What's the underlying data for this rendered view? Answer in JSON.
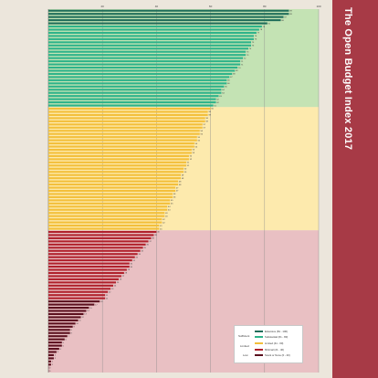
{
  "title": "The Open Budget Index 2017",
  "colors": {
    "background": "#ece6dc",
    "side_panel": "#a73a46",
    "band_sufficient": "#c4e3b4",
    "band_limited": "#fdeaad",
    "band_low": "#e9c0c3",
    "extensive": "#1f6d5a",
    "substantial": "#2db38a",
    "limited": "#f3bf3a",
    "minimal": "#b0202b",
    "scant": "#5a0f1d"
  },
  "legend": {
    "categories": [
      "Sufficient",
      "Limited",
      "Low"
    ],
    "items": [
      {
        "label": "Extensive (81 - 100)",
        "color": "#1f6d5a"
      },
      {
        "label": "Substantial (61 - 80)",
        "color": "#2db38a"
      },
      {
        "label": "Limited (41 - 60)",
        "color": "#f3bf3a"
      },
      {
        "label": "Minimal (21 - 40)",
        "color": "#b0202b"
      },
      {
        "label": "Scant or None (0 - 20)",
        "color": "#5a0f1d"
      }
    ]
  },
  "chart_data": {
    "type": "bar",
    "orientation": "horizontal",
    "title": "The Open Budget Index 2017",
    "xlim": [
      0,
      100
    ],
    "xticks": [
      "20",
      "40",
      "60",
      "80",
      "100"
    ],
    "grid": true,
    "legend_position": "bottom-right",
    "bands": [
      {
        "label": "Sufficient",
        "range": [
          61,
          100
        ]
      },
      {
        "label": "Limited",
        "range": [
          41,
          60
        ]
      },
      {
        "label": "Low",
        "range": [
          0,
          40
        ]
      }
    ],
    "series": [
      {
        "name": "Extensive (81 - 100)",
        "values": [
          89,
          89,
          87,
          86,
          81
        ]
      },
      {
        "name": "Substantial (61 - 80)",
        "values": [
          79,
          78,
          77,
          76,
          76,
          75,
          75,
          74,
          73,
          73,
          72,
          71,
          71,
          70,
          69,
          68,
          67,
          66,
          66,
          65,
          64,
          64,
          63,
          62,
          62,
          61
        ]
      },
      {
        "name": "Limited (41 - 60)",
        "values": [
          60,
          59,
          59,
          58,
          58,
          57,
          57,
          56,
          56,
          55,
          55,
          54,
          54,
          53,
          53,
          52,
          52,
          51,
          51,
          50,
          50,
          49,
          49,
          48,
          48,
          47,
          47,
          46,
          46,
          45,
          45,
          44,
          44,
          43,
          43,
          42,
          42,
          41,
          41
        ]
      },
      {
        "name": "Minimal (21 - 40)",
        "values": [
          40,
          39,
          38,
          37,
          36,
          35,
          34,
          33,
          32,
          31,
          30,
          30,
          29,
          28,
          27,
          26,
          25,
          24,
          23,
          22,
          21,
          21
        ]
      },
      {
        "name": "Scant or None (0 - 20)",
        "values": [
          19,
          17,
          15,
          14,
          13,
          12,
          11,
          10,
          9,
          8,
          8,
          7,
          6,
          5,
          5,
          4,
          3,
          2,
          2,
          1,
          1,
          0,
          0
        ]
      }
    ]
  }
}
